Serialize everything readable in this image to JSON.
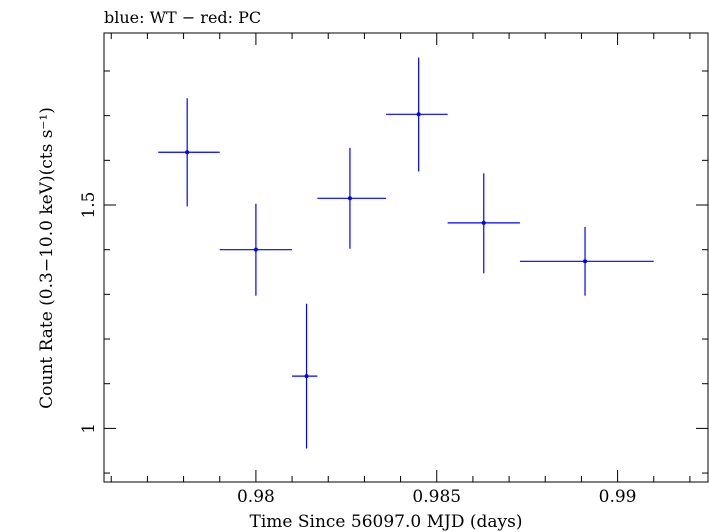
{
  "chart_data": {
    "type": "scatter",
    "title": "blue: WT − red: PC",
    "xlabel": "Time Since 56097.0 MJD (days)",
    "ylabel": "Count Rate (0.3−10.0 keV)(cts s⁻¹)",
    "xlim": [
      0.9758,
      0.9925
    ],
    "ylim": [
      0.88,
      1.885
    ],
    "x_ticks": [
      {
        "value": 0.98,
        "label": "0.98"
      },
      {
        "value": 0.985,
        "label": "0.985"
      },
      {
        "value": 0.99,
        "label": "0.99"
      }
    ],
    "y_ticks": [
      {
        "value": 1.0,
        "label": "1"
      },
      {
        "value": 1.5,
        "label": "1.5"
      }
    ],
    "grid": false,
    "series": [
      {
        "name": "WT",
        "color": "#0000ff",
        "points": [
          {
            "x": 0.9781,
            "y": 1.618,
            "xerr": [
              0.9773,
              0.979
            ],
            "yerr": [
              1.497,
              1.739
            ]
          },
          {
            "x": 0.98,
            "y": 1.4,
            "xerr": [
              0.979,
              0.981
            ],
            "yerr": [
              1.297,
              1.503
            ]
          },
          {
            "x": 0.9814,
            "y": 1.117,
            "xerr": [
              0.981,
              0.9817
            ],
            "yerr": [
              0.955,
              1.279
            ]
          },
          {
            "x": 0.9826,
            "y": 1.515,
            "xerr": [
              0.9817,
              0.9836
            ],
            "yerr": [
              1.402,
              1.628
            ]
          },
          {
            "x": 0.9845,
            "y": 1.703,
            "xerr": [
              0.9836,
              0.9853
            ],
            "yerr": [
              1.575,
              1.83
            ]
          },
          {
            "x": 0.9863,
            "y": 1.46,
            "xerr": [
              0.9853,
              0.9873
            ],
            "yerr": [
              1.347,
              1.571
            ]
          },
          {
            "x": 0.9891,
            "y": 1.374,
            "xerr": [
              0.9873,
              0.991
            ],
            "yerr": [
              1.297,
              1.451
            ]
          }
        ]
      }
    ]
  }
}
